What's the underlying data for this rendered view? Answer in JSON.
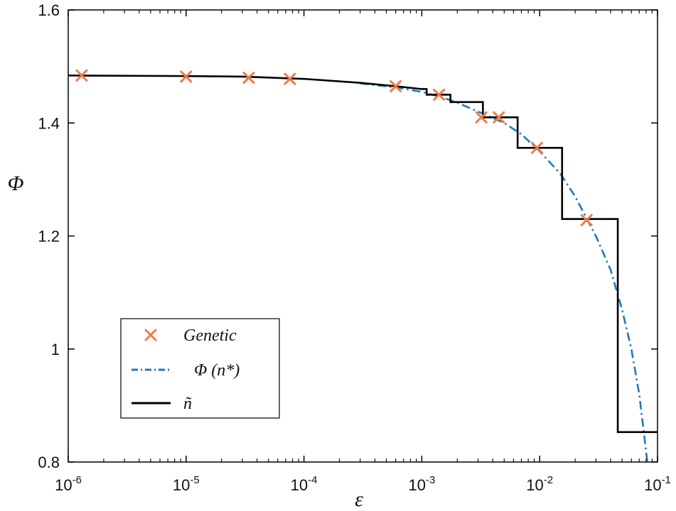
{
  "chart_data": {
    "type": "line",
    "title": "",
    "xlabel": "ε",
    "ylabel": "Φ",
    "xscale": "log",
    "xlim": [
      1e-06,
      0.1
    ],
    "ylim": [
      0.8,
      1.6
    ],
    "grid": false,
    "legend_position": "bottom-left",
    "x_ticks": [
      {
        "value": 1e-06,
        "base": "10",
        "exp": "-6"
      },
      {
        "value": 1e-05,
        "base": "10",
        "exp": "-5"
      },
      {
        "value": 0.0001,
        "base": "10",
        "exp": "-4"
      },
      {
        "value": 0.001,
        "base": "10",
        "exp": "-3"
      },
      {
        "value": 0.01,
        "base": "10",
        "exp": "-2"
      },
      {
        "value": 0.1,
        "base": "10",
        "exp": "-1"
      }
    ],
    "y_ticks": [
      {
        "value": 0.8,
        "label": "0.8"
      },
      {
        "value": 1.0,
        "label": "1"
      },
      {
        "value": 1.2,
        "label": "1.2"
      },
      {
        "value": 1.4,
        "label": "1.4"
      },
      {
        "value": 1.6,
        "label": "1.6"
      }
    ],
    "series": [
      {
        "name": "Genetic",
        "kind": "scatter",
        "marker": "x",
        "color": "#f0794a",
        "points": [
          [
            1.3e-06,
            1.484
          ],
          [
            1e-05,
            1.482
          ],
          [
            3.4e-05,
            1.48
          ],
          [
            7.6e-05,
            1.478
          ],
          [
            0.0006,
            1.465
          ],
          [
            0.0014,
            1.45
          ],
          [
            0.0032,
            1.41
          ],
          [
            0.0045,
            1.41
          ],
          [
            0.0095,
            1.356
          ],
          [
            0.025,
            1.228
          ]
        ]
      },
      {
        "name": "Φ (n*)",
        "kind": "line",
        "style": "dashdot",
        "color": "#1f7ab8",
        "points": [
          [
            0.0003,
            1.47
          ],
          [
            0.0006,
            1.463
          ],
          [
            0.001,
            1.455
          ],
          [
            0.0015,
            1.445
          ],
          [
            0.002,
            1.436
          ],
          [
            0.003,
            1.42
          ],
          [
            0.005,
            1.4
          ],
          [
            0.007,
            1.38
          ],
          [
            0.01,
            1.35
          ],
          [
            0.015,
            1.31
          ],
          [
            0.02,
            1.27
          ],
          [
            0.03,
            1.2
          ],
          [
            0.04,
            1.14
          ],
          [
            0.05,
            1.07
          ],
          [
            0.06,
            1.0
          ],
          [
            0.07,
            0.92
          ],
          [
            0.082,
            0.8
          ]
        ]
      },
      {
        "name": "ñ",
        "kind": "line",
        "style": "solid",
        "color": "#000000",
        "points": [
          [
            1e-06,
            1.484
          ],
          [
            1e-05,
            1.483
          ],
          [
            3e-05,
            1.482
          ],
          [
            0.0001,
            1.478
          ],
          [
            0.0003,
            1.471
          ],
          [
            0.0006,
            1.465
          ],
          [
            0.001,
            1.46
          ],
          [
            0.0011,
            1.46
          ],
          [
            0.0011,
            1.45
          ],
          [
            0.00175,
            1.45
          ],
          [
            0.00175,
            1.437
          ],
          [
            0.0033,
            1.437
          ],
          [
            0.0033,
            1.41
          ],
          [
            0.0065,
            1.41
          ],
          [
            0.0065,
            1.356
          ],
          [
            0.0155,
            1.356
          ],
          [
            0.0155,
            1.23
          ],
          [
            0.046,
            1.23
          ],
          [
            0.046,
            0.853
          ],
          [
            0.1,
            0.853
          ]
        ]
      }
    ],
    "legend": [
      {
        "label": "Genetic",
        "series": 0
      },
      {
        "label": "Φ (n*)",
        "series": 1
      },
      {
        "label": "ñ",
        "series": 2
      }
    ]
  }
}
